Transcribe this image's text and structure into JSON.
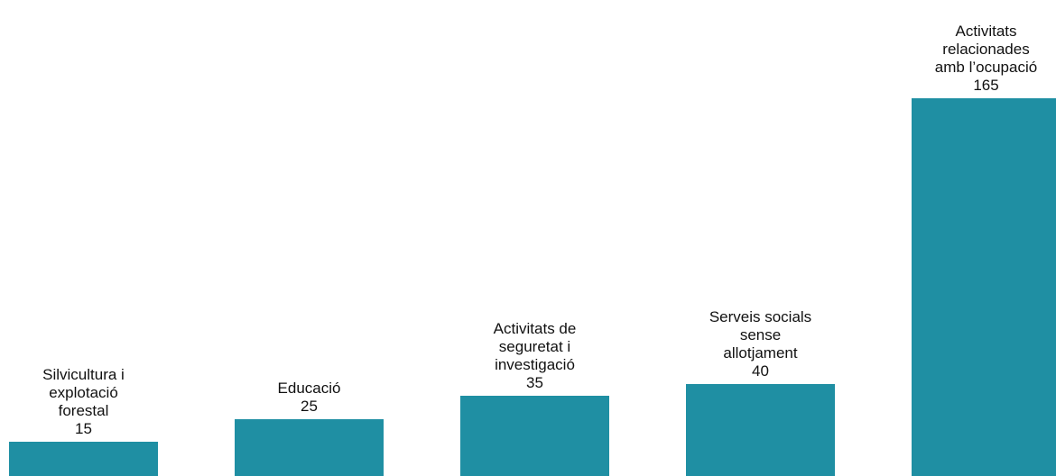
{
  "chart_data": {
    "type": "bar",
    "categories": [
      "Silvicultura i explotació forestal",
      "Educació",
      "Activitats de seguretat i investigació",
      "Serveis socials sense allotjament",
      "Activitats relacionades amb l’ocupació"
    ],
    "values": [
      15,
      25,
      35,
      40,
      165
    ],
    "color": "#1f8fa3"
  }
}
